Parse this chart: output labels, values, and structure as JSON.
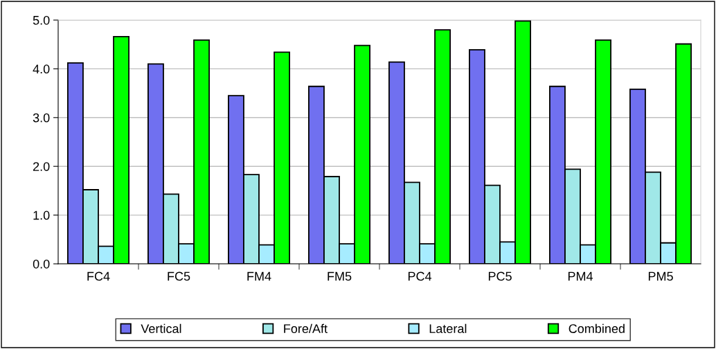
{
  "chart_data": {
    "type": "bar",
    "categories": [
      "FC4",
      "FC5",
      "FM4",
      "FM5",
      "PC4",
      "PC5",
      "PM4",
      "PM5"
    ],
    "series": [
      {
        "name": "Vertical",
        "color": "#7070f0",
        "values": [
          4.12,
          4.1,
          3.45,
          3.64,
          4.14,
          4.39,
          3.64,
          3.58
        ]
      },
      {
        "name": "Fore/Aft",
        "color": "#a0e8e8",
        "values": [
          1.52,
          1.43,
          1.83,
          1.79,
          1.67,
          1.61,
          1.94,
          1.88
        ]
      },
      {
        "name": "Lateral",
        "color": "#a6ecff",
        "values": [
          0.36,
          0.41,
          0.39,
          0.41,
          0.41,
          0.45,
          0.39,
          0.43
        ]
      },
      {
        "name": "Combined",
        "color": "#00ff00",
        "values": [
          4.66,
          4.59,
          4.34,
          4.48,
          4.8,
          4.98,
          4.59,
          4.51
        ]
      }
    ],
    "ylim": [
      0,
      5
    ],
    "yticks": [
      {
        "value": 0,
        "label": "0.0"
      },
      {
        "value": 1,
        "label": "1.0"
      },
      {
        "value": 2,
        "label": "2.0"
      },
      {
        "value": 3,
        "label": "3.0"
      },
      {
        "value": 4,
        "label": "4.0"
      },
      {
        "value": 5,
        "label": "5.0"
      }
    ],
    "grid": "y",
    "legend": "bottom"
  }
}
